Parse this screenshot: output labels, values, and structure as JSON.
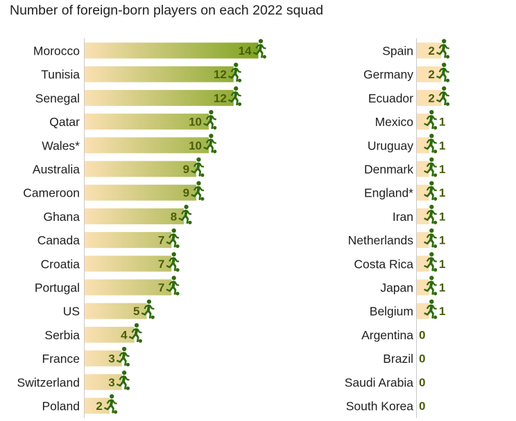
{
  "chart_data": {
    "type": "bar",
    "title": "Number of foreign-born players on each 2022 squad",
    "xlabel": "",
    "ylabel": "",
    "xlim": [
      0,
      14
    ],
    "grid": false,
    "legend": "none",
    "colors": {
      "bar_start": "#fbe0b2",
      "bar_end": "#7fa321",
      "icon": "#2f6b0d",
      "value_text": "#4a5e0b"
    },
    "icon": "soccer-player-icon",
    "panels": [
      {
        "categories": [
          "Morocco",
          "Tunisia",
          "Senegal",
          "Qatar",
          "Wales*",
          "Australia",
          "Cameroon",
          "Ghana",
          "Canada",
          "Croatia",
          "Portugal",
          "US",
          "Serbia",
          "France",
          "Switzerland",
          "Poland"
        ],
        "values": [
          14,
          12,
          12,
          10,
          10,
          9,
          9,
          8,
          7,
          7,
          7,
          5,
          4,
          3,
          3,
          2
        ]
      },
      {
        "categories": [
          "Spain",
          "Germany",
          "Ecuador",
          "Mexico",
          "Uruguay",
          "Denmark",
          "England*",
          "Iran",
          "Netherlands",
          "Costa Rica",
          "Japan",
          "Belgium",
          "Argentina",
          "Brazil",
          "Saudi Arabia",
          "South Korea"
        ],
        "values": [
          2,
          2,
          2,
          1,
          1,
          1,
          1,
          1,
          1,
          1,
          1,
          1,
          0,
          0,
          0,
          0
        ]
      }
    ]
  }
}
